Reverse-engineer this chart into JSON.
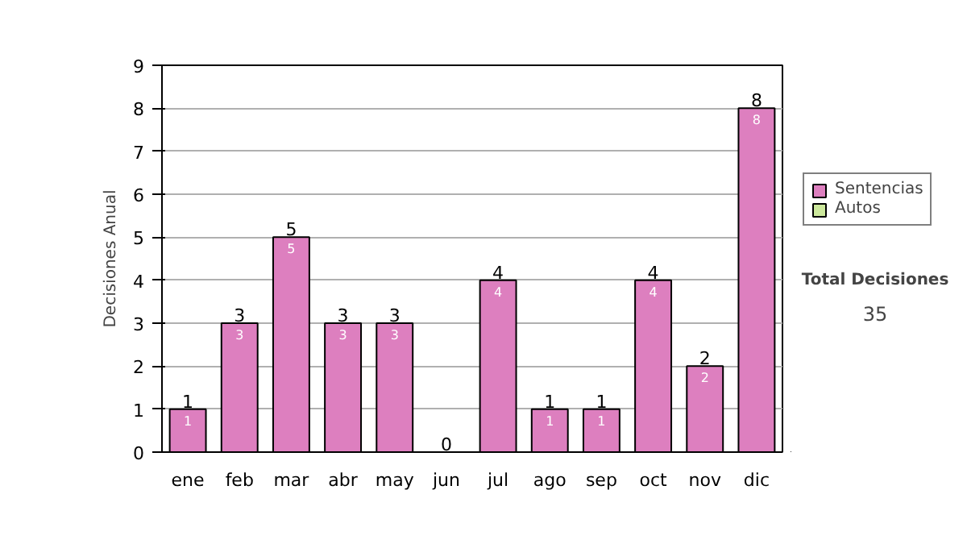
{
  "chart_data": {
    "type": "bar",
    "stacked": true,
    "ylabel": "Decisiones Anual",
    "categories": [
      "ene",
      "feb",
      "mar",
      "abr",
      "may",
      "jun",
      "jul",
      "ago",
      "sep",
      "oct",
      "nov",
      "dic"
    ],
    "series": [
      {
        "name": "Sentencias",
        "color": "#dd7fbf",
        "values": [
          1,
          3,
          5,
          3,
          3,
          0,
          4,
          1,
          1,
          4,
          2,
          8
        ],
        "value_labels": [
          "1",
          "3",
          "5",
          "3",
          "3",
          null,
          "4",
          "1",
          "1",
          "4",
          "2",
          "8"
        ]
      },
      {
        "name": "Autos",
        "color": "#cce89c",
        "values": [
          0,
          0,
          0,
          0,
          0,
          0,
          0,
          0,
          0,
          0,
          0,
          0
        ]
      }
    ],
    "totals": [
      "1",
      "3",
      "5",
      "3",
      "3",
      "0",
      "4",
      "1",
      "1",
      "4",
      "2",
      "8"
    ],
    "ylim": [
      0,
      9
    ],
    "yticks": [
      0,
      1,
      2,
      3,
      4,
      5,
      6,
      7,
      8,
      9
    ],
    "grid": "y",
    "legend": "right",
    "annotations": [
      "Total Decisiones",
      "35"
    ]
  }
}
